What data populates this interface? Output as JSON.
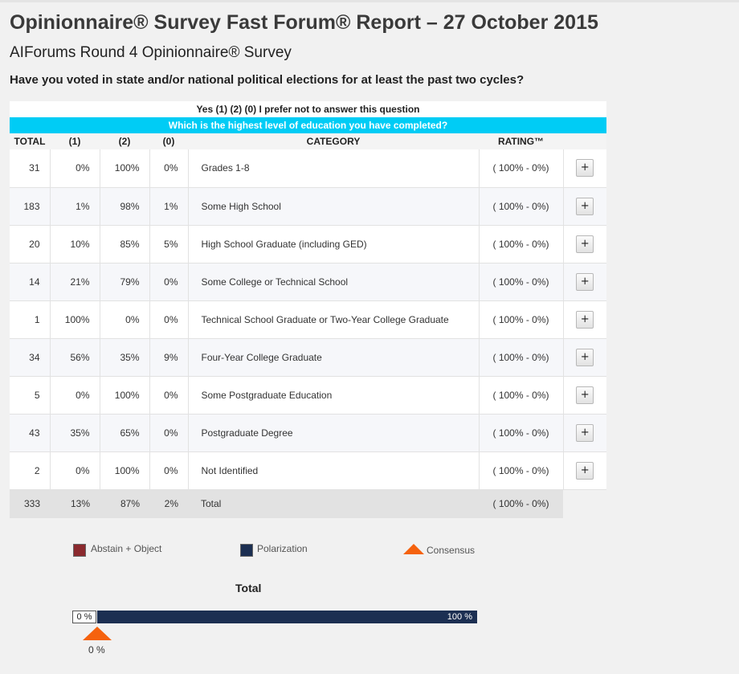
{
  "header": {
    "title": "Opinionnaire® Survey Fast Forum® Report – 27 October 2015",
    "subtitle": "AIForums Round 4 Opinionnaire® Survey",
    "question": "Have you voted in state and/or national political elections for at least the past two cycles?"
  },
  "report": {
    "answers": "Yes (1) (2) (0) I prefer not to answer this question",
    "sub_question": "Which is the highest level of education you have completed?",
    "columns": [
      "TOTAL",
      "(1)",
      "(2)",
      "(0)",
      "CATEGORY",
      "RATING™"
    ],
    "rows": [
      {
        "total": "31",
        "c1": "0%",
        "c2": "100%",
        "c0": "0%",
        "category": "Grades 1-8",
        "rating": "( 100% - 0%)",
        "btn": "+"
      },
      {
        "total": "183",
        "c1": "1%",
        "c2": "98%",
        "c0": "1%",
        "category": "Some High School",
        "rating": "( 100% - 0%)",
        "btn": "+"
      },
      {
        "total": "20",
        "c1": "10%",
        "c2": "85%",
        "c0": "5%",
        "category": "High School Graduate (including GED)",
        "rating": "( 100% - 0%)",
        "btn": "+"
      },
      {
        "total": "14",
        "c1": "21%",
        "c2": "79%",
        "c0": "0%",
        "category": "Some College or Technical School",
        "rating": "( 100% - 0%)",
        "btn": "+"
      },
      {
        "total": "1",
        "c1": "100%",
        "c2": "0%",
        "c0": "0%",
        "category": "Technical School Graduate or Two-Year College Graduate",
        "rating": "( 100% - 0%)",
        "btn": "+"
      },
      {
        "total": "34",
        "c1": "56%",
        "c2": "35%",
        "c0": "9%",
        "category": "Four-Year College Graduate",
        "rating": "( 100% - 0%)",
        "btn": "+"
      },
      {
        "total": "5",
        "c1": "0%",
        "c2": "100%",
        "c0": "0%",
        "category": "Some Postgraduate Education",
        "rating": "( 100% - 0%)",
        "btn": "+"
      },
      {
        "total": "43",
        "c1": "35%",
        "c2": "65%",
        "c0": "0%",
        "category": "Postgraduate Degree",
        "rating": "( 100% - 0%)",
        "btn": "+"
      },
      {
        "total": "2",
        "c1": "0%",
        "c2": "100%",
        "c0": "0%",
        "category": "Not Identified",
        "rating": "( 100% - 0%)",
        "btn": "+"
      }
    ],
    "footer": {
      "total": "333",
      "c1": "13%",
      "c2": "87%",
      "c0": "2%",
      "category": "Total",
      "rating": "( 100% - 0%)"
    }
  },
  "legend": {
    "abstain": {
      "label": "Abstain + Object",
      "color": "#8b2a2e"
    },
    "polarization": {
      "label": "Polarization",
      "color": "#1c2f52"
    },
    "consensus": {
      "label": "Consensus",
      "color": "#f5620e"
    }
  },
  "summary": {
    "label": "Total",
    "abstain_text": "0 %",
    "polarization_text": "100 %",
    "consensus_text": "0 %",
    "abstain_fraction": 0.0,
    "polarization_fraction": 1.0,
    "consensus_fraction": 0.0
  }
}
